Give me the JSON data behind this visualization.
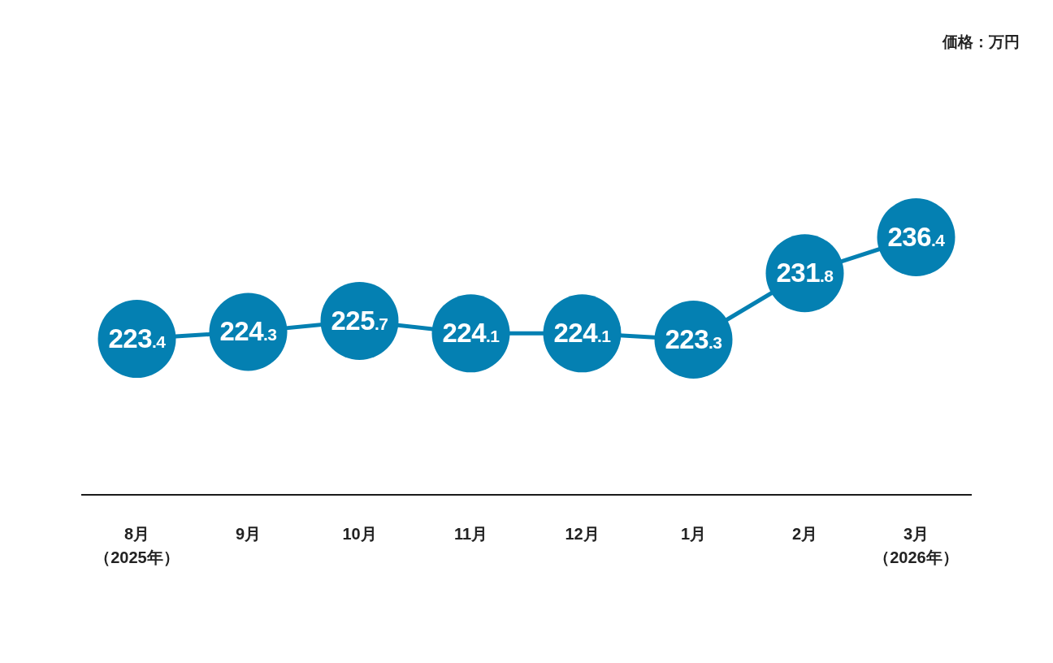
{
  "chart_data": {
    "type": "bubble",
    "annotations": [
      "価格：万円"
    ],
    "categories": [
      "8月（2025年）",
      "9月",
      "10月",
      "11月",
      "12月",
      "1月",
      "2月",
      "3月（2026年）"
    ],
    "series": [
      {
        "color": "#0480b2",
        "values": [
          223.4,
          224.3,
          225.7,
          224.1,
          224.1,
          223.3,
          231.8,
          236.4
        ],
        "sizes": [
          1,
          1,
          1,
          1,
          1,
          1,
          1,
          1
        ]
      }
    ],
    "data_labels": true,
    "line_style": "solid"
  }
}
